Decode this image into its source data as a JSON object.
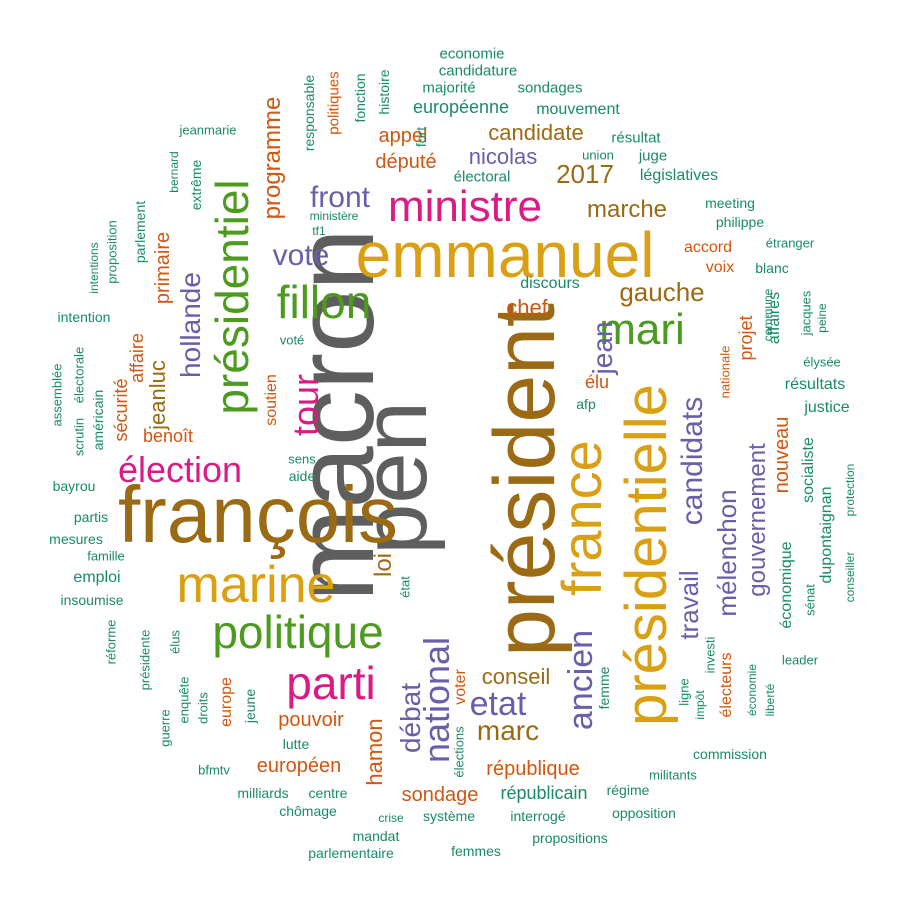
{
  "palette": {
    "gray": "#5e5e5e",
    "brown": "#9a6a14",
    "gold": "#d9a014",
    "green": "#4c9a1e",
    "magenta": "#dc1a83",
    "purple": "#6b5ea8",
    "orange": "#d2560f",
    "teal": "#1a8a6a"
  },
  "words": [
    "macron",
    "pen",
    "président",
    "françois",
    "emmanuel",
    "présidentielle",
    "france",
    "marine",
    "politique",
    "présidentiel",
    "fillon",
    "parti",
    "mari",
    "ministre",
    "élection",
    "tour",
    "national",
    "ancien",
    "candidats",
    "débat",
    "travail",
    "mélenchon",
    "gouvernement",
    "hollande",
    "jean",
    "etat",
    "front",
    "vote",
    "gauche",
    "marche",
    "programme",
    "marc",
    "jeanluc",
    "loi",
    "conseil",
    "candidate",
    "nicolas",
    "2017",
    "député",
    "chef",
    "primaire",
    "hamon",
    "appel",
    "république",
    "sondage",
    "républicain",
    "nouveau",
    "européen",
    "pouvoir",
    "européenne",
    "sécurité",
    "affaire",
    "benoît",
    "élu",
    "projet",
    "socialiste",
    "électeurs",
    "économique",
    "dupontaignan",
    "accord",
    "voix",
    "législatives",
    "résultats",
    "affaires",
    "justice",
    "soutien",
    "discours",
    "europe",
    "emploi",
    "mouvement",
    "majorité",
    "sondages",
    "candidature",
    "economie",
    "résultat",
    "juge",
    "électoral",
    "union",
    "fonction",
    "fort",
    "histoire",
    "politiques",
    "responsable",
    "jeanmarie",
    "extrême",
    "bernard",
    "parlement",
    "ministère",
    "tf1",
    "meeting",
    "philippe",
    "étranger",
    "blanc",
    "commune",
    "jacques",
    "peine",
    "élysée",
    "nationale",
    "intentions",
    "proposition",
    "intention",
    "électorale",
    "américain",
    "assemblée",
    "scrutin",
    "bayrou",
    "partis",
    "mesures",
    "famille",
    "insoumise",
    "réforme",
    "présidente",
    "guerre",
    "enquête",
    "droits",
    "jeune",
    "lutte",
    "bfmtv",
    "milliards",
    "centre",
    "chômage",
    "mandat",
    "crise",
    "parlementaire",
    "système",
    "interrogé",
    "femmes",
    "propositions",
    "opposition",
    "militants",
    "commission",
    "régime",
    "leader",
    "liberté",
    "économie",
    "impôt",
    "ligne",
    "investi",
    "femme",
    "élections",
    "voter",
    "élus",
    "état",
    "sens",
    "aide",
    "voté",
    "afp",
    "sénat",
    "conseiller",
    "protection"
  ]
}
